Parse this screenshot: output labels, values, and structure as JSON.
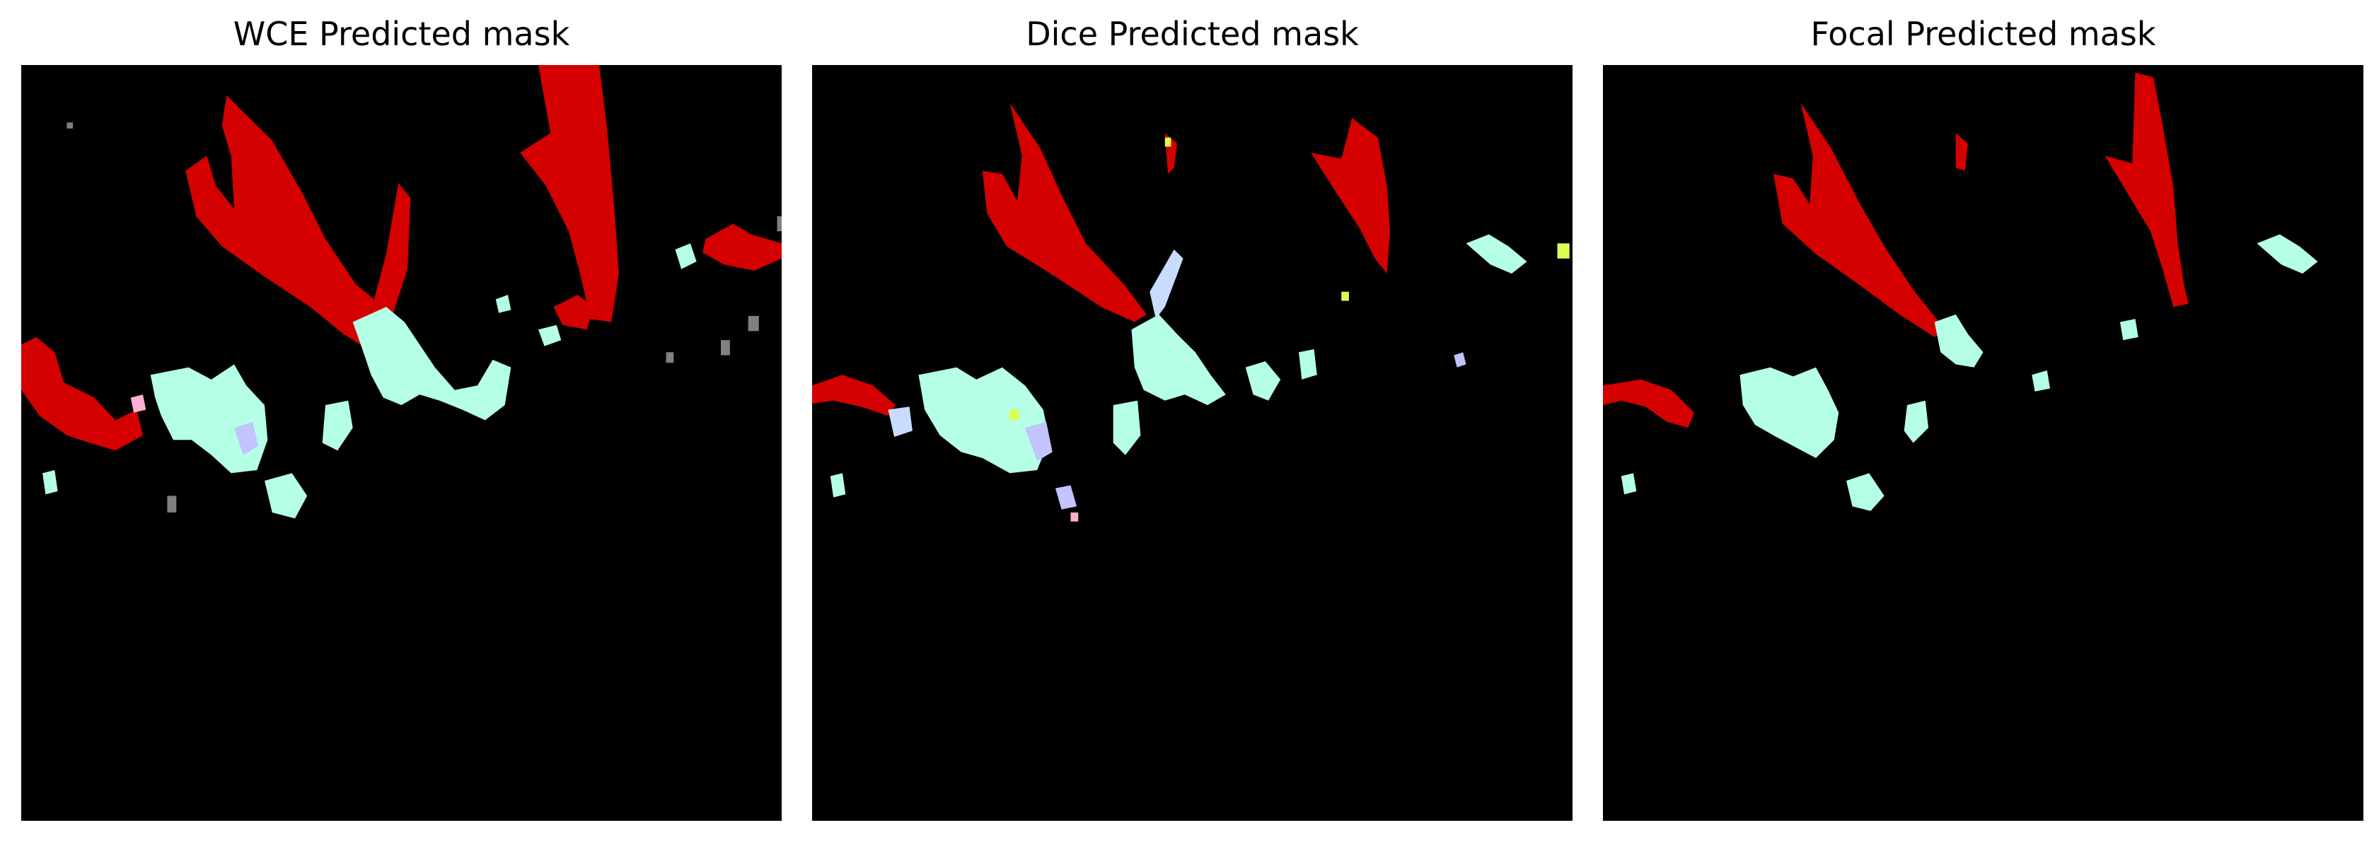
{
  "panels": [
    {
      "title": "WCE Predicted mask"
    },
    {
      "title": "Dice Predicted mask"
    },
    {
      "title": "Focal Predicted mask"
    }
  ],
  "colors": {
    "background": "#000000",
    "class_red": "#d40000",
    "class_mint": "#b4ffe6",
    "class_lavender": "#c3c3ff",
    "class_gray": "#808080",
    "class_pink": "#ffb0d0",
    "class_lightblue": "#c8dcff",
    "class_yellowgreen": "#dcff50"
  }
}
